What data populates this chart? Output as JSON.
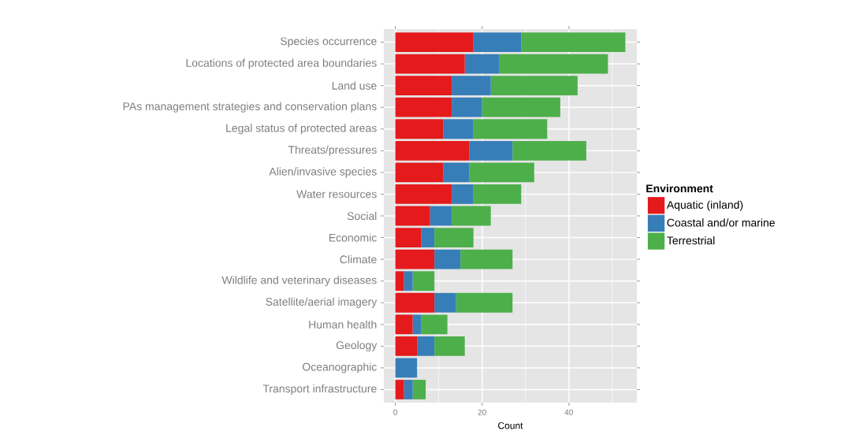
{
  "chart_data": {
    "type": "bar",
    "orientation": "horizontal",
    "stacked": true,
    "xlabel": "Count",
    "legend_title": "Environment",
    "legend": "right",
    "grid": true,
    "categories": [
      "Species occurrence",
      "Locations of protected area boundaries",
      "Land use",
      "PAs management strategies and conservation plans",
      "Legal status of protected areas",
      "Threats/pressures",
      "Alien/invasive species",
      "Water resources",
      "Social",
      "Economic",
      "Climate",
      "Wildlife and veterinary diseases",
      "Satellite/aerial imagery",
      "Human health",
      "Geology",
      "Oceanographic",
      "Transport infrastructure"
    ],
    "series": [
      {
        "name": "Aquatic (inland)",
        "color": "#e41a1c",
        "values": [
          18,
          16,
          13,
          13,
          11,
          17,
          11,
          13,
          8,
          6,
          9,
          2,
          9,
          4,
          5,
          0,
          2
        ]
      },
      {
        "name": "Coastal and/or marine",
        "color": "#377eb8",
        "values": [
          11,
          8,
          9,
          7,
          7,
          10,
          6,
          5,
          5,
          3,
          6,
          2,
          5,
          2,
          4,
          5,
          2
        ]
      },
      {
        "name": "Terrestrial",
        "color": "#4daf4a",
        "values": [
          24,
          25,
          20,
          18,
          17,
          17,
          15,
          11,
          9,
          9,
          12,
          5,
          13,
          6,
          7,
          0,
          3
        ]
      }
    ],
    "xlim": [
      -2.65,
      55.65
    ],
    "xticks": [
      0,
      {
        "value": 10,
        "label": null
      },
      20,
      {
        "value": 30,
        "label": null
      },
      40,
      {
        "value": 50,
        "label": null
      }
    ]
  }
}
